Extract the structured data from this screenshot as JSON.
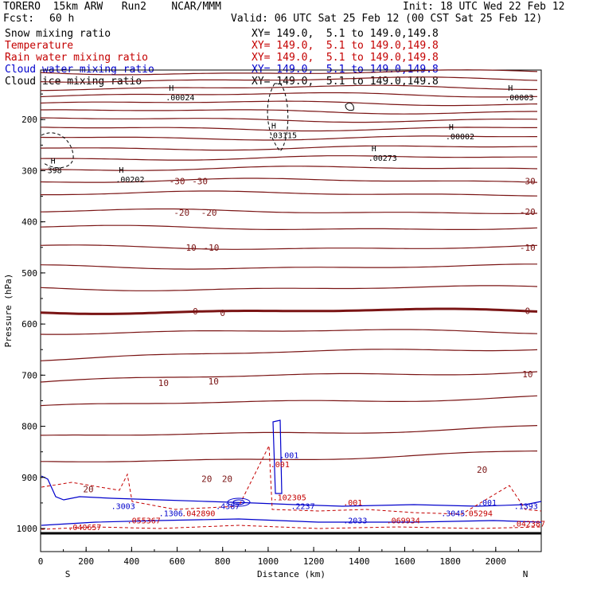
{
  "header": {
    "title": "TORERO  15km ARW   Run2    NCAR/MMM",
    "init": "Init: 18 UTC Wed 22 Feb 12",
    "fcst_label": "Fcst:",
    "fcst_value": "60 h",
    "valid": "Valid: 06 UTC Sat 25 Feb 12 (00 CST Sat 25 Feb 12)"
  },
  "legend": [
    {
      "label": "Snow mixing ratio",
      "xy": "XY= 149.0,  5.1 to 149.0,149.8",
      "color": "#000000"
    },
    {
      "label": "Temperature",
      "xy": "XY= 149.0,  5.1 to 149.0,149.8",
      "color": "#c40000"
    },
    {
      "label": "Rain water mixing ratio",
      "xy": "XY= 149.0,  5.1 to 149.0,149.8",
      "color": "#c40000"
    },
    {
      "label": "Cloud water mixing ratio",
      "xy": "XY= 149.0,  5.1 to 149.0,149.8",
      "color": "#0000cc"
    },
    {
      "label": "Cloud ice mixing ratio",
      "xy": "XY= 149.0,  5.1 to 149.0,149.8",
      "color": "#000000"
    }
  ],
  "chart_data": {
    "type": "contour-cross-section",
    "xlabel": "Distance (km)",
    "ylabel": "Pressure (hPa)",
    "xlim": [
      0,
      2200
    ],
    "ylim": [
      1050,
      100
    ],
    "x_ticks": [
      "0",
      "200",
      "400",
      "600",
      "800",
      "1000",
      "1200",
      "1400",
      "1600",
      "1800",
      "2000"
    ],
    "y_ticks": [
      "200",
      "300",
      "400",
      "500",
      "600",
      "700",
      "800",
      "900",
      "1000"
    ],
    "end_labels": {
      "left": "S",
      "right": "N"
    },
    "temperature_labels": [
      {
        "text": "-30",
        "x": 600,
        "p": 320
      },
      {
        "text": "-30",
        "x": 700,
        "p": 320
      },
      {
        "text": "-30",
        "x": 2140,
        "p": 320
      },
      {
        "text": "-20",
        "x": 620,
        "p": 382
      },
      {
        "text": "-20",
        "x": 740,
        "p": 382
      },
      {
        "text": "-20",
        "x": 2140,
        "p": 380
      },
      {
        "text": "-10",
        "x": 650,
        "p": 450
      },
      {
        "text": "-10",
        "x": 750,
        "p": 450
      },
      {
        "text": "-10",
        "x": 2140,
        "p": 450
      },
      {
        "text": "0",
        "x": 680,
        "p": 575
      },
      {
        "text": "0",
        "x": 800,
        "p": 578
      },
      {
        "text": "0",
        "x": 2140,
        "p": 574
      },
      {
        "text": "10",
        "x": 540,
        "p": 715
      },
      {
        "text": "10",
        "x": 760,
        "p": 712
      },
      {
        "text": "10",
        "x": 2140,
        "p": 698
      },
      {
        "text": "20",
        "x": 730,
        "p": 903
      },
      {
        "text": "20",
        "x": 820,
        "p": 903
      },
      {
        "text": "20",
        "x": 1940,
        "p": 885
      },
      {
        "text": "20",
        "x": 210,
        "p": 923
      }
    ],
    "snow_highs": [
      {
        "value": ".00024",
        "x": 550,
        "p": 150
      },
      {
        "value": ".03115",
        "x": 1000,
        "p": 224
      },
      {
        "value": ".00273",
        "x": 1440,
        "p": 268
      },
      {
        "value": ".00002",
        "x": 1780,
        "p": 226
      },
      {
        "value": ".00003",
        "x": 2040,
        "p": 150
      },
      {
        "value": ".00202",
        "x": 330,
        "p": 310
      },
      {
        "value": "398",
        "x": 30,
        "p": 292
      }
    ],
    "cloud_water_labels": [
      {
        "text": ".001",
        "x": 1050,
        "p": 862
      },
      {
        "text": ".001",
        "x": 1920,
        "p": 955
      },
      {
        "text": ".3003",
        "x": 310,
        "p": 962
      },
      {
        "text": ".1306",
        "x": 520,
        "p": 976
      },
      {
        "text": ".4387",
        "x": 770,
        "p": 962
      },
      {
        "text": ".2237",
        "x": 1100,
        "p": 962
      },
      {
        "text": ".2033",
        "x": 1330,
        "p": 990
      },
      {
        "text": ".3045",
        "x": 1760,
        "p": 976
      },
      {
        "text": ".1393",
        "x": 2080,
        "p": 962
      }
    ],
    "rain_labels": [
      {
        "text": ".001",
        "x": 1010,
        "p": 880
      },
      {
        "text": ".001",
        "x": 1330,
        "p": 955
      },
      {
        "text": ".102305",
        "x": 1020,
        "p": 945
      },
      {
        "text": ".042890",
        "x": 620,
        "p": 976
      },
      {
        "text": ".055367",
        "x": 380,
        "p": 990
      },
      {
        "text": ".040657",
        "x": 120,
        "p": 1003
      },
      {
        "text": ".069934",
        "x": 1520,
        "p": 990
      },
      {
        "text": ".05294",
        "x": 1860,
        "p": 976
      },
      {
        "text": ".042387",
        "x": 2070,
        "p": 996
      }
    ]
  }
}
